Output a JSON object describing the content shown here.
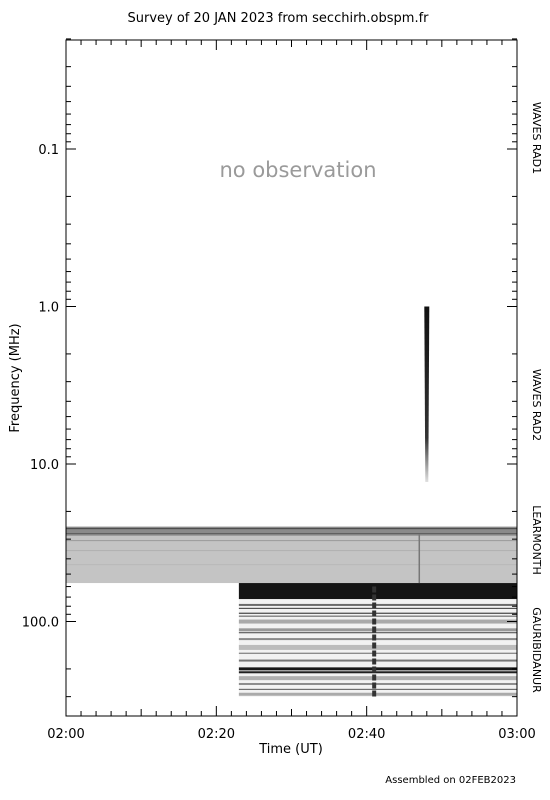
{
  "chart_data": {
    "type": "heatmap",
    "title": "Survey of 20 JAN 2023 from secchirh.obspm.fr",
    "xlabel": "Time (UT)",
    "ylabel": "Frequency (MHz)",
    "x_ticks": [
      "02:00",
      "02:20",
      "02:40",
      "03:00"
    ],
    "xlim": [
      "02:00",
      "03:00"
    ],
    "y_scale": "log",
    "ylim": [
      0.02,
      300
    ],
    "y_ticks": [
      "0.1",
      "1.0",
      "10.0",
      "100.0"
    ],
    "y_tick_values": [
      0.1,
      1.0,
      10.0,
      100.0
    ],
    "no_data_label": "no observation",
    "instruments": [
      {
        "name": "WAVES RAD1",
        "freq_range_mhz": [
          0.02,
          1.0
        ],
        "time_range": [
          "02:00",
          "03:00"
        ],
        "status": "no observation"
      },
      {
        "name": "WAVES RAD2",
        "freq_range_mhz": [
          1.0,
          16.0
        ],
        "time_range": [
          "02:00",
          "03:00"
        ]
      },
      {
        "name": "LEARMONTH",
        "freq_range_mhz": [
          25.0,
          57.0
        ],
        "time_range": [
          "02:00",
          "03:00"
        ]
      },
      {
        "name": "GAURIBIDANUR",
        "freq_range_mhz": [
          57.0,
          300.0
        ],
        "time_range": [
          "02:23",
          "03:00"
        ]
      }
    ],
    "events": [
      {
        "instrument": "WAVES RAD2",
        "time": "02:48",
        "freq_range_mhz": [
          1.0,
          13.0
        ]
      },
      {
        "instrument": "LEARMONTH",
        "time": "02:47",
        "freq_range_mhz": [
          28.0,
          57.0
        ]
      },
      {
        "instrument": "GAURIBIDANUR",
        "time": "02:41",
        "freq_range_mhz": [
          60.0,
          300.0
        ]
      }
    ]
  },
  "footer": "Assembled on 02FEB2023"
}
